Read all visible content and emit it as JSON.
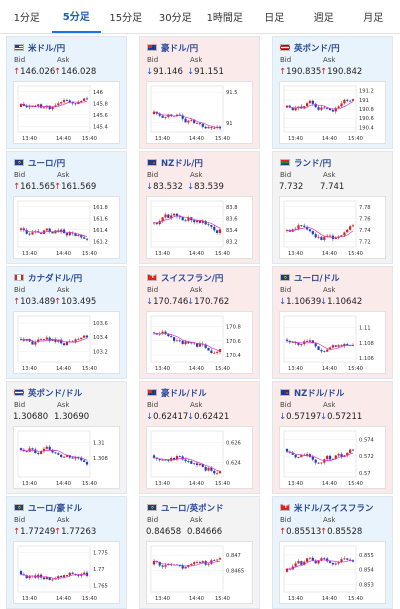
{
  "tabs": [
    {
      "label": "1分足",
      "active": false
    },
    {
      "label": "5分足",
      "active": true
    },
    {
      "label": "15分足",
      "active": false
    },
    {
      "label": "30分足",
      "active": false
    },
    {
      "label": "1時間足",
      "active": false
    },
    {
      "label": "日足",
      "active": false
    },
    {
      "label": "週足",
      "active": false
    },
    {
      "label": "月足",
      "active": false
    }
  ],
  "labels": {
    "bid": "Bid",
    "ask": "Ask"
  },
  "colors": {
    "up_arrow": "#dd2222",
    "down_arrow": "#2255cc",
    "candle_up": "#d22222",
    "candle_down": "#1f3fbf",
    "ma_line": "#d633cc"
  },
  "cards": [
    {
      "pair": "米ドル/円",
      "flag": "us-flag-icon",
      "trend": "up",
      "bid": "146.026",
      "ask": "146.028",
      "chart_data": {
        "type": "candlestick",
        "x_ticks": [
          "13:40",
          "14:40",
          "15:40"
        ],
        "y_ticks": [
          "146",
          "145.8",
          "145.6",
          "145.4"
        ],
        "y_min": 145.3,
        "y_max": 146.1
      }
    },
    {
      "pair": "豪ドル/円",
      "flag": "au-flag-icon",
      "trend": "down",
      "bid": "91.146",
      "ask": "91.151",
      "chart_data": {
        "type": "candlestick",
        "x_ticks": [
          "13:40",
          "14:40",
          "15:40"
        ],
        "y_ticks": [
          "91.5",
          "91"
        ],
        "y_min": 90.85,
        "y_max": 91.6
      }
    },
    {
      "pair": "英ポンド/円",
      "flag": "gb-flag-icon",
      "trend": "up",
      "bid": "190.835",
      "ask": "190.842",
      "chart_data": {
        "type": "candlestick",
        "x_ticks": [
          "13:40",
          "14:40",
          "15:40"
        ],
        "y_ticks": [
          "191.2",
          "191",
          "190.8",
          "190.6",
          "190.4"
        ],
        "y_min": 190.3,
        "y_max": 191.3
      }
    },
    {
      "pair": "ユーロ/円",
      "flag": "eu-flag-icon",
      "trend": "up",
      "bid": "161.565",
      "ask": "161.569",
      "chart_data": {
        "type": "candlestick",
        "x_ticks": [
          "13:40",
          "14:40",
          "15:40"
        ],
        "y_ticks": [
          "161.8",
          "161.6",
          "161.4",
          "161.2"
        ],
        "y_min": 161.1,
        "y_max": 161.9
      }
    },
    {
      "pair": "NZドル/円",
      "flag": "nz-flag-icon",
      "trend": "down",
      "bid": "83.532",
      "ask": "83.539",
      "chart_data": {
        "type": "candlestick",
        "x_ticks": [
          "13:40",
          "14:40",
          "15:40"
        ],
        "y_ticks": [
          "83.8",
          "83.6",
          "83.4",
          "83.2"
        ],
        "y_min": 83.1,
        "y_max": 83.9
      }
    },
    {
      "pair": "ランド/円",
      "flag": "za-flag-icon",
      "trend": "flat",
      "bid": "7.732",
      "ask": "7.741",
      "chart_data": {
        "type": "candlestick",
        "x_ticks": [
          "13:40",
          "14:40",
          "15:40"
        ],
        "y_ticks": [
          "7.78",
          "7.76",
          "7.74",
          "7.72"
        ],
        "y_min": 7.71,
        "y_max": 7.79
      }
    },
    {
      "pair": "カナダドル/円",
      "flag": "ca-flag-icon",
      "trend": "up",
      "bid": "103.489",
      "ask": "103.495",
      "chart_data": {
        "type": "candlestick",
        "x_ticks": [
          "13:40",
          "14:40",
          "15:40"
        ],
        "y_ticks": [
          "103.6",
          "103.4",
          "103.2"
        ],
        "y_min": 103.05,
        "y_max": 103.7
      }
    },
    {
      "pair": "スイスフラン/円",
      "flag": "ch-flag-icon",
      "trend": "down",
      "bid": "170.746",
      "ask": "170.762",
      "chart_data": {
        "type": "candlestick",
        "x_ticks": [
          "13:40",
          "14:40",
          "15:40"
        ],
        "y_ticks": [
          "170.8",
          "170.6",
          "170.4"
        ],
        "y_min": 170.3,
        "y_max": 170.95
      }
    },
    {
      "pair": "ユーロ/ドル",
      "flag": "eu-flag-icon",
      "trend": "down",
      "bid": "1.10639",
      "ask": "1.10642",
      "chart_data": {
        "type": "candlestick",
        "x_ticks": [
          "13:40",
          "14:40",
          "15:40"
        ],
        "y_ticks": [
          "1.11",
          "1.108",
          "1.106"
        ],
        "y_min": 1.1055,
        "y_max": 1.1115
      }
    },
    {
      "pair": "英ポンド/ドル",
      "flag": "gb-flag-icon",
      "trend": "flat",
      "bid": "1.30680",
      "ask": "1.30690",
      "chart_data": {
        "type": "candlestick",
        "x_ticks": [
          "13:40",
          "14:40",
          "15:40"
        ],
        "y_ticks": [
          "1.31",
          "1.308"
        ],
        "y_min": 1.3055,
        "y_max": 1.3115
      }
    },
    {
      "pair": "豪ドル/ドル",
      "flag": "au-flag-icon",
      "trend": "down",
      "bid": "0.62417",
      "ask": "0.62421",
      "chart_data": {
        "type": "candlestick",
        "x_ticks": [
          "13:40",
          "14:40",
          "15:40"
        ],
        "y_ticks": [
          "0.626",
          "0.624"
        ],
        "y_min": 0.6225,
        "y_max": 0.6272
      }
    },
    {
      "pair": "NZドル/ドル",
      "flag": "nz-flag-icon",
      "trend": "down",
      "bid": "0.57197",
      "ask": "0.57211",
      "chart_data": {
        "type": "candlestick",
        "x_ticks": [
          "13:40",
          "14:40",
          "15:40"
        ],
        "y_ticks": [
          "0.574",
          "0.572",
          "0.57"
        ],
        "y_min": 0.5695,
        "y_max": 0.575
      }
    },
    {
      "pair": "ユーロ/豪ドル",
      "flag": "eu-flag-icon",
      "trend": "up",
      "bid": "1.77249",
      "ask": "1.77263",
      "chart_data": {
        "type": "candlestick",
        "x_ticks": [
          "13:40",
          "14:40",
          "15:40"
        ],
        "y_ticks": [
          "1.775",
          "1.77",
          "1.765"
        ],
        "y_min": 1.763,
        "y_max": 1.777
      }
    },
    {
      "pair": "ユーロ/英ポンド",
      "flag": "eu-flag-icon",
      "trend": "flat",
      "bid": "0.84658",
      "ask": "0.84666",
      "chart_data": {
        "type": "candlestick",
        "x_ticks": [
          "13:40",
          "14:40",
          "15:40"
        ],
        "y_ticks": [
          "0.847",
          "0.8465"
        ],
        "y_min": 0.8458,
        "y_max": 0.8473
      }
    },
    {
      "pair": "米ドル/スイスフラン",
      "flag": "ch-flag-icon",
      "trend": "up",
      "bid": "0.85513",
      "ask": "0.85528",
      "chart_data": {
        "type": "candlestick",
        "x_ticks": [
          "13:40",
          "14:40",
          "15:40"
        ],
        "y_ticks": [
          "0.855",
          "0.854",
          "0.853"
        ],
        "y_min": 0.8525,
        "y_max": 0.8556
      }
    }
  ]
}
